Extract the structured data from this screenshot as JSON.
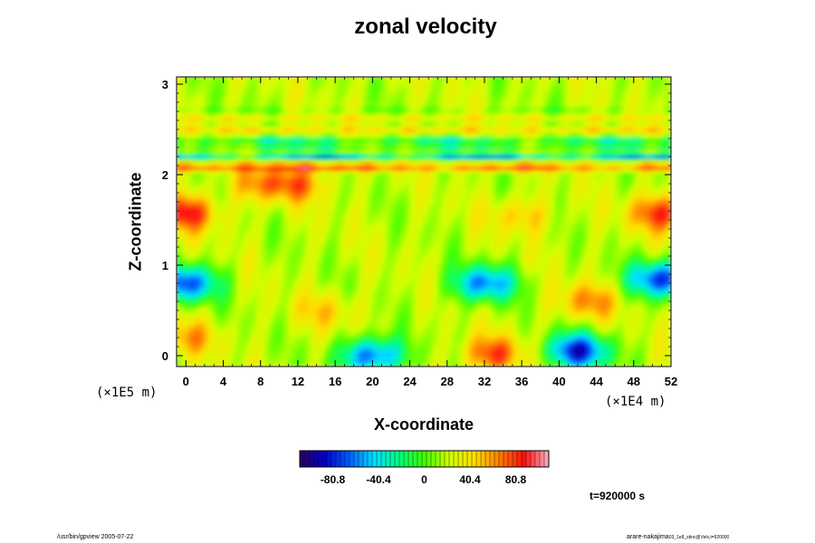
{
  "chart_data": {
    "type": "heatmap",
    "title": "zonal velocity",
    "xlabel": "X-coordinate",
    "ylabel": "Z-coordinate",
    "x_unit": "(×1E4 m)",
    "y_unit": "(×1E5 m)",
    "x_ticks": [
      "0",
      "4",
      "8",
      "12",
      "16",
      "20",
      "24",
      "28",
      "32",
      "36",
      "40",
      "44",
      "48",
      "52"
    ],
    "y_ticks": [
      "0",
      "1",
      "2",
      "3"
    ],
    "xlim": [
      -1,
      52
    ],
    "ylim": [
      -0.12,
      3.08
    ],
    "colorbar": {
      "ticks": [
        "-80.8",
        "-40.4",
        "0",
        "40.4",
        "80.8"
      ],
      "range": [
        -110,
        110
      ],
      "colors": [
        "#2a0060",
        "#0000c8",
        "#0060ff",
        "#00e0ff",
        "#00ff80",
        "#40ff00",
        "#d0ff00",
        "#ffe000",
        "#ff8000",
        "#ff1010",
        "#ffb0c0"
      ]
    },
    "background_value": 20,
    "features": [
      {
        "x": 0,
        "z": 0.8,
        "value": -70
      },
      {
        "x": 51,
        "z": 0.85,
        "value": -75
      },
      {
        "x": 32,
        "z": 0.8,
        "value": -60
      },
      {
        "x": 42,
        "z": 0.05,
        "value": -80
      },
      {
        "x": 20,
        "z": 0.0,
        "value": -70
      },
      {
        "x": 33,
        "z": 0.02,
        "value": 75
      },
      {
        "x": 43,
        "z": 0.6,
        "value": 60
      },
      {
        "x": 0,
        "z": 1.58,
        "value": 85
      },
      {
        "x": 51,
        "z": 1.58,
        "value": 80
      },
      {
        "x": 0,
        "z": 0.2,
        "value": 55
      },
      {
        "x": 8,
        "z": 1.9,
        "value": 55
      },
      {
        "x": 12,
        "z": 1.9,
        "value": 60
      },
      {
        "x": 36,
        "z": 1.55,
        "value": 50
      },
      {
        "x": 15,
        "z": 0.5,
        "value": 45
      }
    ],
    "bands": [
      {
        "z": 2.07,
        "value": 80
      },
      {
        "z": 2.13,
        "value": 45
      },
      {
        "z": 2.2,
        "value": -60
      },
      {
        "z": 2.3,
        "value": -20
      },
      {
        "z": 2.38,
        "value": -30
      },
      {
        "z": 2.5,
        "value": 50
      },
      {
        "z": 2.62,
        "value": 40
      },
      {
        "z": 2.72,
        "value": 10
      }
    ],
    "time_label": "t=920000 s"
  },
  "footer": {
    "left": "/usr/bin/gpview 2005-07-22",
    "right": "arare-nakajima"
  },
  "footer_sub": "03_1e8_stinc@Velx,t=920000"
}
